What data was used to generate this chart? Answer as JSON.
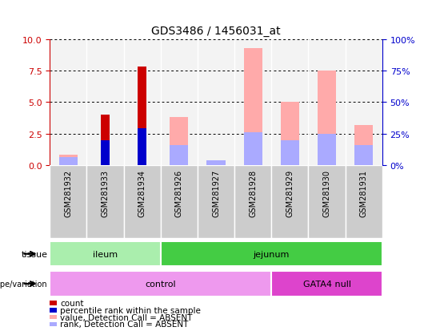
{
  "title": "GDS3486 / 1456031_at",
  "samples": [
    "GSM281932",
    "GSM281933",
    "GSM281934",
    "GSM281926",
    "GSM281927",
    "GSM281928",
    "GSM281929",
    "GSM281930",
    "GSM281931"
  ],
  "count_values": [
    0.05,
    4.0,
    7.8,
    0.05,
    0.05,
    0.05,
    0.05,
    0.05,
    0.05
  ],
  "percentile_values": [
    0.0,
    2.0,
    2.9,
    0.0,
    0.0,
    0.0,
    0.0,
    0.0,
    0.0
  ],
  "absent_value_values": [
    0.8,
    0.0,
    0.0,
    3.8,
    0.4,
    9.3,
    5.0,
    7.5,
    3.2
  ],
  "absent_rank_values": [
    0.65,
    0.0,
    0.0,
    1.6,
    0.35,
    2.6,
    2.0,
    2.5,
    1.6
  ],
  "count_color": "#cc0000",
  "percentile_color": "#0000cc",
  "absent_value_color": "#ffaaaa",
  "absent_rank_color": "#aaaaff",
  "ylim_left": [
    0,
    10
  ],
  "ylim_right": [
    0,
    100
  ],
  "yticks_left": [
    0,
    2.5,
    5,
    7.5,
    10
  ],
  "yticks_right": [
    0,
    25,
    50,
    75,
    100
  ],
  "tissue_groups": [
    {
      "label": "ileum",
      "start": 0,
      "end": 3,
      "color": "#aaeead"
    },
    {
      "label": "jejunum",
      "start": 3,
      "end": 9,
      "color": "#44cc44"
    }
  ],
  "genotype_groups": [
    {
      "label": "control",
      "start": 0,
      "end": 6,
      "color": "#ee99ee"
    },
    {
      "label": "GATA4 null",
      "start": 6,
      "end": 9,
      "color": "#dd44cc"
    }
  ],
  "legend_items": [
    {
      "label": "count",
      "color": "#cc0000"
    },
    {
      "label": "percentile rank within the sample",
      "color": "#0000cc"
    },
    {
      "label": "value, Detection Call = ABSENT",
      "color": "#ffaaaa"
    },
    {
      "label": "rank, Detection Call = ABSENT",
      "color": "#aaaaff"
    }
  ]
}
